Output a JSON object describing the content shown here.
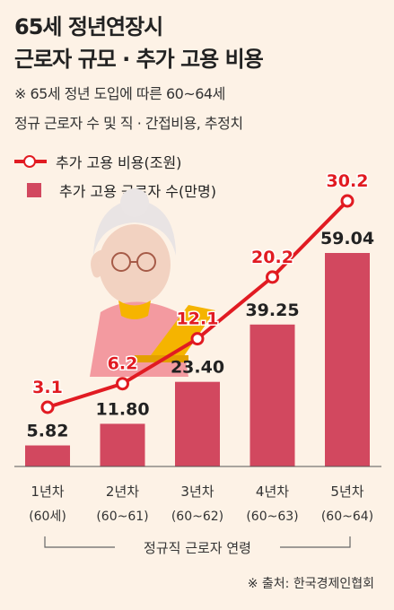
{
  "title_lines": [
    "65세 정년연장시",
    "근로자 규모 · 추가 고용 비용"
  ],
  "subtitle_lines": [
    "※ 65세 정년 도입에 따른 60~64세",
    "정규 근로자 수 및 직 · 간접비용, 추정치"
  ],
  "legend": {
    "line": "추가 고용 비용(조원)",
    "bar": "추가 고용 근로자 수(만명)"
  },
  "x_axis_title": "정규직 근로자 연령",
  "source": "※ 출처: 한국경제인협회",
  "colors": {
    "line": "#e11b22",
    "bar": "#d2485f",
    "background": "#fdf2e6"
  },
  "chart_data": {
    "type": "bar",
    "categories": [
      "1년차",
      "2년차",
      "3년차",
      "4년차",
      "5년차"
    ],
    "sub_labels": [
      "(60세)",
      "(60~61)",
      "(60~62)",
      "(60~63)",
      "(60~64)"
    ],
    "series": [
      {
        "name": "추가 고용 근로자 수(만명)",
        "type": "bar",
        "values": [
          5.82,
          11.8,
          23.4,
          39.25,
          59.04
        ],
        "value_labels": [
          "5.82",
          "11.80",
          "23.40",
          "39.25",
          "59.04"
        ]
      },
      {
        "name": "추가 고용 비용(조원)",
        "type": "line",
        "values": [
          3.1,
          6.2,
          12.1,
          20.2,
          30.2
        ],
        "value_labels": [
          "3.1",
          "6.2",
          "12.1",
          "20.2",
          "30.2"
        ]
      }
    ],
    "xlabel": "정규직 근로자 연령",
    "ylabel": "",
    "grid": false,
    "legend_position": "top-left"
  }
}
